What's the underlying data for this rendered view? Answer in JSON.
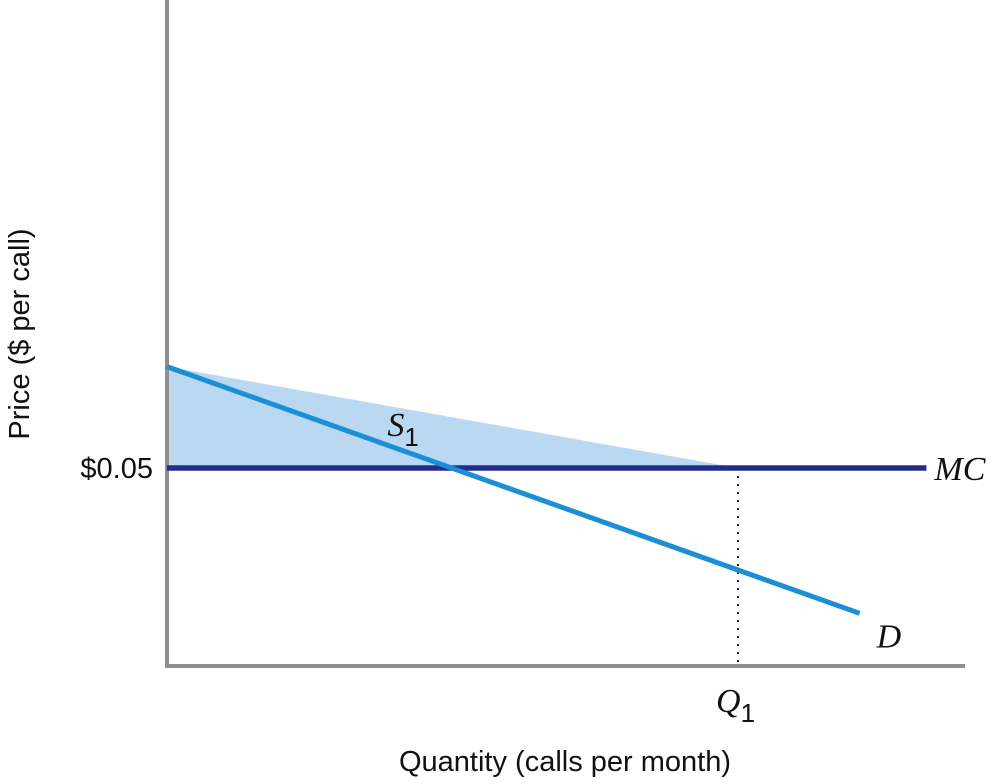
{
  "chart_data": {
    "type": "line",
    "title": "",
    "xlabel": "Quantity (calls per month)",
    "ylabel": "Price ($ per call)",
    "x_tick_labels": [
      {
        "main": "Q",
        "sub": "1",
        "x": 1
      }
    ],
    "y_tick_labels": [
      {
        "text": "$0.05",
        "y": 0.05
      }
    ],
    "xlim": [
      0,
      1.4
    ],
    "ylim": [
      0,
      0.08
    ],
    "grid": false,
    "series": [
      {
        "name": "D",
        "kind": "demand",
        "color": "#1a8fd6",
        "points": [
          {
            "x": 0,
            "y": 0.0756
          },
          {
            "x": 1.213,
            "y": 0.0133
          }
        ]
      },
      {
        "name": "MC",
        "kind": "marginal-cost",
        "color": "#232c8c",
        "points": [
          {
            "x": 0,
            "y": 0.05
          },
          {
            "x": 1.33,
            "y": 0.05
          }
        ]
      }
    ],
    "shaded_regions": [
      {
        "label_main": "S",
        "label_sub": "1",
        "color": "#bad8f2",
        "polygon": [
          {
            "x": 0,
            "y": 0.0756
          },
          {
            "x": 1,
            "y": 0.05
          },
          {
            "x": 0,
            "y": 0.05
          }
        ]
      }
    ],
    "guides": [
      {
        "kind": "vertical-dotted",
        "x": 1,
        "from_y": 0,
        "to_y": 0.05
      }
    ],
    "axis_color": "#8c8e92"
  }
}
